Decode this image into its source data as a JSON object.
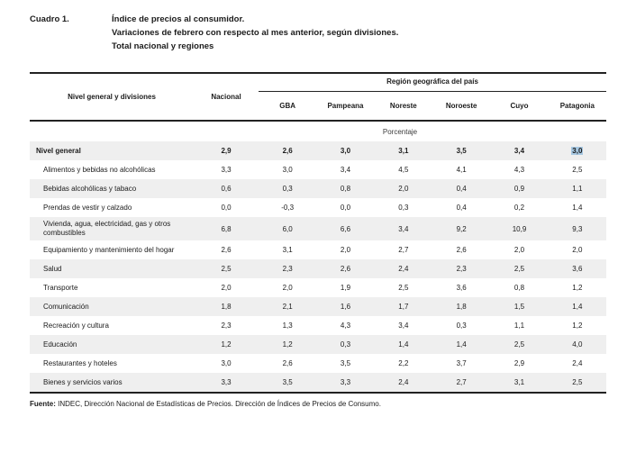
{
  "title": {
    "label": "Cuadro 1.",
    "lines": [
      "Índice de precios al consumidor.",
      "Variaciones de febrero con respecto al mes anterior, según divisiones.",
      "Total nacional y regiones"
    ]
  },
  "table": {
    "col1_header": "Nivel general y divisiones",
    "col2_header": "Nacional",
    "region_group_header": "Región geográfica del país",
    "regions": [
      "GBA",
      "Pampeana",
      "Noreste",
      "Noroeste",
      "Cuyo",
      "Patagonia"
    ],
    "unit_label": "Porcentaje",
    "rows": [
      {
        "label": "Nivel general",
        "bold": true,
        "values": [
          "2,9",
          "2,6",
          "3,0",
          "3,1",
          "3,5",
          "3,4",
          "3,0"
        ],
        "highlight_col": 6
      },
      {
        "label": "Alimentos y bebidas no alcohólicas",
        "bold": false,
        "values": [
          "3,3",
          "3,0",
          "3,4",
          "4,5",
          "4,1",
          "4,3",
          "2,5"
        ]
      },
      {
        "label": "Bebidas alcohólicas y tabaco",
        "bold": false,
        "values": [
          "0,6",
          "0,3",
          "0,8",
          "2,0",
          "0,4",
          "0,9",
          "1,1"
        ]
      },
      {
        "label": "Prendas de vestir y calzado",
        "bold": false,
        "values": [
          "0,0",
          "-0,3",
          "0,0",
          "0,3",
          "0,4",
          "0,2",
          "1,4"
        ]
      },
      {
        "label": "Vivienda, agua, electricidad, gas y otros combustibles",
        "bold": false,
        "values": [
          "6,8",
          "6,0",
          "6,6",
          "3,4",
          "9,2",
          "10,9",
          "9,3"
        ]
      },
      {
        "label": "Equipamiento y mantenimiento del hogar",
        "bold": false,
        "values": [
          "2,6",
          "3,1",
          "2,0",
          "2,7",
          "2,6",
          "2,0",
          "2,0"
        ]
      },
      {
        "label": "Salud",
        "bold": false,
        "values": [
          "2,5",
          "2,3",
          "2,6",
          "2,4",
          "2,3",
          "2,5",
          "3,6"
        ]
      },
      {
        "label": "Transporte",
        "bold": false,
        "values": [
          "2,0",
          "2,0",
          "1,9",
          "2,5",
          "3,6",
          "0,8",
          "1,2"
        ]
      },
      {
        "label": "Comunicación",
        "bold": false,
        "values": [
          "1,8",
          "2,1",
          "1,6",
          "1,7",
          "1,8",
          "1,5",
          "1,4"
        ]
      },
      {
        "label": "Recreación y cultura",
        "bold": false,
        "values": [
          "2,3",
          "1,3",
          "4,3",
          "3,4",
          "0,3",
          "1,1",
          "1,2"
        ]
      },
      {
        "label": "Educación",
        "bold": false,
        "values": [
          "1,2",
          "1,2",
          "0,3",
          "1,4",
          "1,4",
          "2,5",
          "4,0"
        ]
      },
      {
        "label": "Restaurantes y hoteles",
        "bold": false,
        "values": [
          "3,0",
          "2,6",
          "3,5",
          "2,2",
          "3,7",
          "2,9",
          "2,4"
        ]
      },
      {
        "label": "Bienes y servicios varios",
        "bold": false,
        "values": [
          "3,3",
          "3,5",
          "3,3",
          "2,4",
          "2,7",
          "3,1",
          "2,5"
        ]
      }
    ]
  },
  "footer": {
    "source_label": "Fuente:",
    "source_text": "INDEC, Dirección Nacional de Estadísticas de Precios. Dirección de Índices de Precios de Consumo."
  },
  "colors": {
    "stripe": "#efefef",
    "selection": "#a7c8e2",
    "text": "#1b1b1b"
  }
}
